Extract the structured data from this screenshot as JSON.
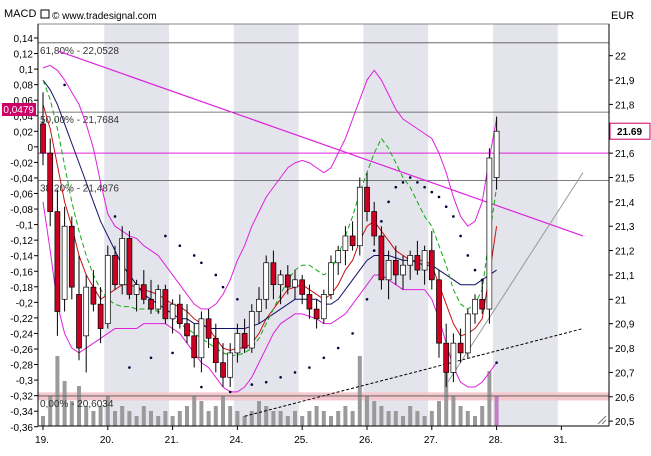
{
  "header": {
    "left_label": "MACD",
    "copyright": "© www.tradesignal.com",
    "right_label": "EUR"
  },
  "colors": {
    "band": "#e4e4ec",
    "bull_body": "#ffffff",
    "bear_body": "#cc0022",
    "volume": "#9a9a9a",
    "volume_last": "#c080c0",
    "price_box": "#cc0066",
    "macd_axis": "#cc0066",
    "fib_line": "#555555",
    "trend_magenta": "#dd22dd",
    "support_band": "#f4c8cc",
    "bollinger": "#dd22dd",
    "ema_fast": "#cc1111",
    "ema_slow": "#111166",
    "signal_green": "#11aa11",
    "dots": "#000033"
  },
  "chart_data": {
    "type": "candlestick",
    "title": "",
    "x_ticks": [
      "19.",
      "20.",
      "21.",
      "24.",
      "25.",
      "26.",
      "27.",
      "28.",
      "31."
    ],
    "left_axis": {
      "label": "MACD",
      "ticks": [
        "0,14",
        "0,12",
        "0,1",
        "0,08",
        "0,06",
        "0,04",
        "0,02",
        "0",
        "-0,02",
        "-0,04",
        "-0,06",
        "-0,08",
        "-0,1",
        "-0,12",
        "-0,14",
        "-0,16",
        "-0,18",
        "-0,2",
        "-0,22",
        "-0,24",
        "-0,26",
        "-0,28",
        "-0,3",
        "-0,32",
        "-0,34",
        "-0,36"
      ],
      "highlight": "0,0479"
    },
    "right_axis": {
      "label": "EUR",
      "ticks": [
        "22",
        "21,9",
        "21,8",
        "21,7",
        "21,6",
        "21,5",
        "21,4",
        "21,3",
        "21,2",
        "21,1",
        "21",
        "20,9",
        "20,8",
        "20,7",
        "20,6",
        "20,5"
      ],
      "ylim": [
        20.48,
        22.13
      ],
      "last_price": "21.69"
    },
    "fib_levels": [
      {
        "label": "61,80% - 22,0528",
        "value": 22.0528
      },
      {
        "label": "50,00% - 21,7684",
        "value": 21.7684
      },
      {
        "label": "38,20% - 21,4876",
        "value": 21.4876
      },
      {
        "label": "0,00% - 20,6034",
        "value": 20.6034
      }
    ],
    "horizontal_line": 21.6,
    "day_index": [
      0,
      9,
      18,
      27,
      36,
      45,
      54,
      63,
      72
    ],
    "candles": [
      {
        "o": 21.72,
        "h": 21.85,
        "l": 21.55,
        "c": 21.6
      },
      {
        "o": 21.6,
        "h": 21.66,
        "l": 21.3,
        "c": 21.36
      },
      {
        "o": 21.36,
        "h": 21.45,
        "l": 20.85,
        "c": 20.95
      },
      {
        "o": 21.0,
        "h": 21.38,
        "l": 20.95,
        "c": 21.3
      },
      {
        "o": 21.3,
        "h": 21.34,
        "l": 21.0,
        "c": 21.05
      },
      {
        "o": 21.02,
        "h": 21.18,
        "l": 20.75,
        "c": 20.8
      },
      {
        "o": 20.85,
        "h": 21.1,
        "l": 20.7,
        "c": 21.05
      },
      {
        "o": 21.05,
        "h": 21.12,
        "l": 20.95,
        "c": 20.98
      },
      {
        "o": 20.98,
        "h": 21.05,
        "l": 20.82,
        "c": 20.88
      },
      {
        "o": 20.9,
        "h": 21.22,
        "l": 20.88,
        "c": 21.18
      },
      {
        "o": 21.18,
        "h": 21.22,
        "l": 21.04,
        "c": 21.06
      },
      {
        "o": 21.06,
        "h": 21.3,
        "l": 21.02,
        "c": 21.25
      },
      {
        "o": 21.25,
        "h": 21.28,
        "l": 21.0,
        "c": 21.02
      },
      {
        "o": 21.02,
        "h": 21.08,
        "l": 20.95,
        "c": 21.06
      },
      {
        "o": 21.06,
        "h": 21.12,
        "l": 20.98,
        "c": 21.0
      },
      {
        "o": 21.0,
        "h": 21.08,
        "l": 20.94,
        "c": 20.96
      },
      {
        "o": 20.96,
        "h": 21.06,
        "l": 20.94,
        "c": 21.04
      },
      {
        "o": 21.04,
        "h": 21.06,
        "l": 20.9,
        "c": 20.92
      },
      {
        "o": 20.92,
        "h": 21.0,
        "l": 20.86,
        "c": 20.98
      },
      {
        "o": 20.98,
        "h": 21.02,
        "l": 20.88,
        "c": 20.9
      },
      {
        "o": 20.9,
        "h": 20.98,
        "l": 20.82,
        "c": 20.85
      },
      {
        "o": 20.85,
        "h": 20.9,
        "l": 20.72,
        "c": 20.76
      },
      {
        "o": 20.76,
        "h": 20.95,
        "l": 20.7,
        "c": 20.92
      },
      {
        "o": 20.92,
        "h": 20.96,
        "l": 20.8,
        "c": 20.84
      },
      {
        "o": 20.84,
        "h": 20.9,
        "l": 20.7,
        "c": 20.74
      },
      {
        "o": 20.74,
        "h": 20.82,
        "l": 20.64,
        "c": 20.68
      },
      {
        "o": 20.68,
        "h": 20.82,
        "l": 20.64,
        "c": 20.78
      },
      {
        "o": 20.78,
        "h": 20.9,
        "l": 20.74,
        "c": 20.86
      },
      {
        "o": 20.86,
        "h": 20.92,
        "l": 20.78,
        "c": 20.8
      },
      {
        "o": 20.8,
        "h": 20.98,
        "l": 20.78,
        "c": 20.95
      },
      {
        "o": 20.95,
        "h": 21.05,
        "l": 20.9,
        "c": 21.0
      },
      {
        "o": 21.0,
        "h": 21.18,
        "l": 20.96,
        "c": 21.15
      },
      {
        "o": 21.15,
        "h": 21.2,
        "l": 21.0,
        "c": 21.06
      },
      {
        "o": 21.06,
        "h": 21.12,
        "l": 20.98,
        "c": 21.1
      },
      {
        "o": 21.1,
        "h": 21.14,
        "l": 21.02,
        "c": 21.05
      },
      {
        "o": 21.05,
        "h": 21.12,
        "l": 21.0,
        "c": 21.08
      },
      {
        "o": 21.08,
        "h": 21.1,
        "l": 20.98,
        "c": 21.02
      },
      {
        "o": 21.02,
        "h": 21.06,
        "l": 20.92,
        "c": 20.96
      },
      {
        "o": 20.96,
        "h": 21.0,
        "l": 20.88,
        "c": 20.92
      },
      {
        "o": 20.92,
        "h": 21.04,
        "l": 20.9,
        "c": 21.02
      },
      {
        "o": 21.02,
        "h": 21.18,
        "l": 21.0,
        "c": 21.15
      },
      {
        "o": 21.15,
        "h": 21.22,
        "l": 21.1,
        "c": 21.2
      },
      {
        "o": 21.2,
        "h": 21.3,
        "l": 21.14,
        "c": 21.26
      },
      {
        "o": 21.26,
        "h": 21.32,
        "l": 21.2,
        "c": 21.22
      },
      {
        "o": 21.22,
        "h": 21.5,
        "l": 21.18,
        "c": 21.46
      },
      {
        "o": 21.46,
        "h": 21.52,
        "l": 21.32,
        "c": 21.36
      },
      {
        "o": 21.36,
        "h": 21.4,
        "l": 21.22,
        "c": 21.26
      },
      {
        "o": 21.26,
        "h": 21.3,
        "l": 21.04,
        "c": 21.08
      },
      {
        "o": 21.08,
        "h": 21.2,
        "l": 21.0,
        "c": 21.16
      },
      {
        "o": 21.16,
        "h": 21.22,
        "l": 21.06,
        "c": 21.1
      },
      {
        "o": 21.1,
        "h": 21.18,
        "l": 21.04,
        "c": 21.14
      },
      {
        "o": 21.14,
        "h": 21.2,
        "l": 21.08,
        "c": 21.18
      },
      {
        "o": 21.18,
        "h": 21.24,
        "l": 21.1,
        "c": 21.12
      },
      {
        "o": 21.12,
        "h": 21.22,
        "l": 21.06,
        "c": 21.2
      },
      {
        "o": 21.2,
        "h": 21.28,
        "l": 21.04,
        "c": 21.08
      },
      {
        "o": 21.08,
        "h": 21.12,
        "l": 20.76,
        "c": 20.82
      },
      {
        "o": 20.82,
        "h": 20.9,
        "l": 20.64,
        "c": 20.7
      },
      {
        "o": 20.7,
        "h": 20.86,
        "l": 20.66,
        "c": 20.82
      },
      {
        "o": 20.82,
        "h": 20.88,
        "l": 20.74,
        "c": 20.78
      },
      {
        "o": 20.78,
        "h": 20.96,
        "l": 20.76,
        "c": 20.94
      },
      {
        "o": 20.94,
        "h": 21.02,
        "l": 20.9,
        "c": 21.0
      },
      {
        "o": 21.0,
        "h": 21.08,
        "l": 20.94,
        "c": 20.96
      },
      {
        "o": 20.96,
        "h": 21.62,
        "l": 20.9,
        "c": 21.58
      },
      {
        "o": 21.5,
        "h": 21.75,
        "l": 21.45,
        "c": 21.69
      }
    ],
    "volume": [
      2,
      6,
      14,
      9,
      5,
      8,
      4,
      3,
      4,
      6,
      3,
      4,
      3,
      2,
      4,
      3,
      2,
      3,
      2,
      3,
      4,
      6,
      5,
      3,
      4,
      6,
      4,
      3,
      2,
      3,
      5,
      4,
      3,
      3,
      2,
      3,
      2,
      3,
      4,
      3,
      2,
      3,
      4,
      3,
      14,
      6,
      5,
      4,
      3,
      3,
      2,
      4,
      3,
      2,
      3,
      5,
      12,
      6,
      4,
      3,
      2,
      4,
      11,
      6
    ],
    "series": [
      {
        "name": "",
        "kind": "bollinger_upper",
        "values": [
          21.95,
          21.96,
          21.94,
          21.9,
          21.85,
          21.8,
          21.72,
          21.62,
          21.48,
          21.35,
          21.3,
          21.28,
          21.26,
          21.25,
          21.22,
          21.2,
          21.18,
          21.14,
          21.1,
          21.06,
          21.02,
          20.98,
          20.96,
          20.96,
          20.98,
          21.02,
          21.08,
          21.16,
          21.22,
          21.3,
          21.36,
          21.42,
          21.46,
          21.5,
          21.54,
          21.56,
          21.57,
          21.56,
          21.54,
          21.52,
          21.54,
          21.6,
          21.66,
          21.74,
          21.82,
          21.9,
          21.94,
          21.9,
          21.84,
          21.78,
          21.74,
          21.72,
          21.7,
          21.68,
          21.66,
          21.6,
          21.52,
          21.42,
          21.34,
          21.3,
          21.32,
          21.4,
          21.58,
          21.74
        ]
      },
      {
        "name": "",
        "kind": "bollinger_lower",
        "values": [
          21.4,
          21.2,
          20.98,
          20.86,
          20.8,
          20.78,
          20.8,
          20.82,
          20.84,
          20.86,
          20.88,
          20.88,
          20.88,
          20.88,
          20.9,
          20.9,
          20.9,
          20.9,
          20.88,
          20.86,
          20.82,
          20.78,
          20.74,
          20.72,
          20.68,
          20.64,
          20.62,
          20.62,
          20.64,
          20.68,
          20.74,
          20.8,
          20.86,
          20.9,
          20.92,
          20.94,
          20.94,
          20.93,
          20.92,
          20.9,
          20.9,
          20.92,
          20.94,
          20.98,
          21.02,
          21.06,
          21.1,
          21.1,
          21.08,
          21.06,
          21.04,
          21.04,
          21.04,
          21.04,
          21.0,
          20.92,
          20.82,
          20.72,
          20.66,
          20.64,
          20.64,
          20.66,
          20.7,
          20.74
        ]
      },
      {
        "name": "",
        "kind": "ema_fast",
        "values": [
          21.8,
          21.7,
          21.55,
          21.4,
          21.3,
          21.18,
          21.1,
          21.05,
          21.0,
          21.02,
          21.04,
          21.06,
          21.06,
          21.05,
          21.04,
          21.03,
          21.02,
          21.0,
          20.98,
          20.97,
          20.95,
          20.92,
          20.9,
          20.88,
          20.84,
          20.8,
          20.79,
          20.8,
          20.8,
          20.82,
          20.86,
          20.92,
          20.96,
          21.0,
          21.04,
          21.05,
          21.06,
          21.04,
          21.02,
          21.0,
          21.02,
          21.06,
          21.12,
          21.16,
          21.24,
          21.3,
          21.32,
          21.28,
          21.24,
          21.2,
          21.18,
          21.16,
          21.16,
          21.16,
          21.14,
          21.06,
          20.98,
          20.9,
          20.85,
          20.86,
          20.88,
          20.92,
          21.1,
          21.3
        ]
      },
      {
        "name": "",
        "kind": "ema_slow",
        "values": [
          21.9,
          21.86,
          21.8,
          21.72,
          21.64,
          21.56,
          21.48,
          21.4,
          21.32,
          21.26,
          21.2,
          21.14,
          21.1,
          21.06,
          21.02,
          21.0,
          20.98,
          20.96,
          20.94,
          20.92,
          20.92,
          20.9,
          20.9,
          20.88,
          20.88,
          20.88,
          20.88,
          20.88,
          20.88,
          20.89,
          20.9,
          20.92,
          20.94,
          20.96,
          20.98,
          21.0,
          21.0,
          21.0,
          21.0,
          20.98,
          20.98,
          21.0,
          21.04,
          21.08,
          21.12,
          21.16,
          21.18,
          21.18,
          21.18,
          21.17,
          21.16,
          21.16,
          21.15,
          21.14,
          21.14,
          21.12,
          21.1,
          21.08,
          21.06,
          21.06,
          21.06,
          21.08,
          21.1,
          21.12
        ]
      },
      {
        "name": "",
        "kind": "signal_green",
        "values": [
          21.9,
          21.82,
          21.7,
          21.55,
          21.4,
          21.28,
          21.18,
          21.1,
          21.04,
          21.0,
          20.98,
          20.97,
          20.97,
          20.96,
          20.96,
          20.96,
          20.95,
          20.94,
          20.92,
          20.9,
          20.88,
          20.86,
          20.84,
          20.82,
          20.8,
          20.78,
          20.77,
          20.77,
          20.78,
          20.8,
          20.84,
          20.9,
          20.96,
          21.02,
          21.08,
          21.12,
          21.14,
          21.14,
          21.12,
          21.1,
          21.12,
          21.18,
          21.26,
          21.34,
          21.44,
          21.52,
          21.6,
          21.66,
          21.62,
          21.56,
          21.5,
          21.46,
          21.4,
          21.34,
          21.3,
          21.22,
          21.14,
          21.04,
          20.98,
          20.96,
          20.98,
          21.04,
          21.26,
          21.46
        ]
      }
    ],
    "dots_upper": [
      [
        3,
        21.88
      ],
      [
        10,
        21.34
      ],
      [
        17,
        21.26
      ],
      [
        19,
        21.22
      ],
      [
        21,
        21.18
      ],
      [
        22,
        21.15
      ],
      [
        24,
        21.1
      ],
      [
        25,
        21.05
      ],
      [
        27,
        21.0
      ]
    ],
    "dots_lower": [
      [
        12,
        20.72
      ],
      [
        15,
        20.76
      ],
      [
        18,
        20.78
      ],
      [
        22,
        20.64
      ],
      [
        26,
        20.62
      ],
      [
        29,
        20.65
      ],
      [
        31,
        20.66
      ],
      [
        33,
        20.68
      ],
      [
        35,
        20.7
      ],
      [
        37,
        20.72
      ],
      [
        39,
        20.76
      ],
      [
        41,
        20.8
      ],
      [
        43,
        20.86
      ],
      [
        45,
        21.0
      ],
      [
        46,
        21.2
      ],
      [
        47,
        21.32
      ],
      [
        48,
        21.4
      ],
      [
        49,
        21.46
      ],
      [
        50,
        21.48
      ],
      [
        51,
        21.5
      ],
      [
        52,
        21.48
      ],
      [
        53,
        21.46
      ],
      [
        54,
        21.44
      ],
      [
        55,
        21.42
      ],
      [
        56,
        21.38
      ],
      [
        57,
        21.34
      ],
      [
        58,
        21.26
      ],
      [
        59,
        21.18
      ],
      [
        60,
        21.12
      ],
      [
        61,
        21.08
      ],
      [
        62,
        20.98
      ],
      [
        63,
        20.74
      ]
    ],
    "trend_lines": [
      {
        "kind": "resistance",
        "from": [
          2,
          22.02
        ],
        "to": [
          75,
          21.26
        ]
      },
      {
        "kind": "support_dash",
        "from": [
          28,
          20.52
        ],
        "to": [
          75,
          20.88
        ]
      },
      {
        "kind": "channel",
        "from": [
          56,
          20.65
        ],
        "to": [
          75,
          21.52
        ]
      }
    ]
  }
}
